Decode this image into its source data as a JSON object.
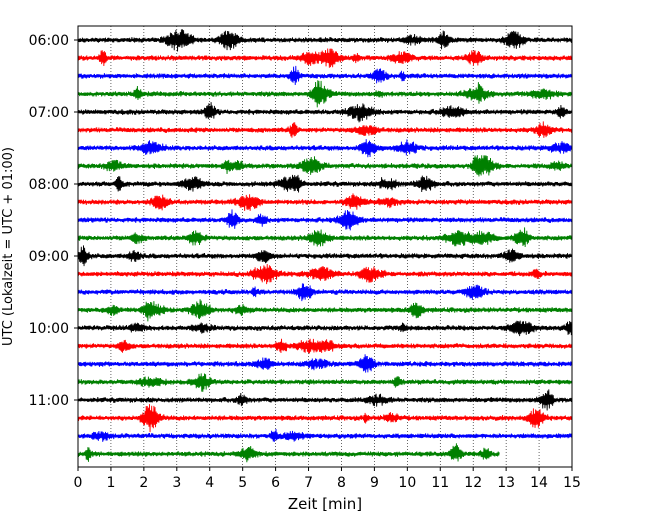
{
  "chart_data": {
    "type": "line",
    "title": "",
    "xlabel": "Zeit  [min]",
    "ylabel": "UTC (Lokalzeit = UTC + 01:00)",
    "xlim": [
      0,
      15
    ],
    "x_ticks": [
      "0",
      "1",
      "2",
      "3",
      "4",
      "5",
      "6",
      "7",
      "8",
      "9",
      "10",
      "11",
      "12",
      "13",
      "14",
      "15"
    ],
    "y_tick_labels": [
      "06:00",
      "07:00",
      "08:00",
      "09:00",
      "10:00",
      "11:00"
    ],
    "grid": "vertical dotted at each minute",
    "start_time": "06:00",
    "minutes_per_line": 15,
    "colors": [
      "#000000",
      "#ff0000",
      "#0000ff",
      "#008000"
    ],
    "traces": [
      {
        "start": "06:00",
        "color": "#000000",
        "length_min": 15
      },
      {
        "start": "06:15",
        "color": "#ff0000",
        "length_min": 15
      },
      {
        "start": "06:30",
        "color": "#0000ff",
        "length_min": 15
      },
      {
        "start": "06:45",
        "color": "#008000",
        "length_min": 15
      },
      {
        "start": "07:00",
        "color": "#000000",
        "length_min": 15
      },
      {
        "start": "07:15",
        "color": "#ff0000",
        "length_min": 15
      },
      {
        "start": "07:30",
        "color": "#0000ff",
        "length_min": 15
      },
      {
        "start": "07:45",
        "color": "#008000",
        "length_min": 15
      },
      {
        "start": "08:00",
        "color": "#000000",
        "length_min": 15
      },
      {
        "start": "08:15",
        "color": "#ff0000",
        "length_min": 15
      },
      {
        "start": "08:30",
        "color": "#0000ff",
        "length_min": 15
      },
      {
        "start": "08:45",
        "color": "#008000",
        "length_min": 15
      },
      {
        "start": "09:00",
        "color": "#000000",
        "length_min": 15
      },
      {
        "start": "09:15",
        "color": "#ff0000",
        "length_min": 15
      },
      {
        "start": "09:30",
        "color": "#0000ff",
        "length_min": 15
      },
      {
        "start": "09:45",
        "color": "#008000",
        "length_min": 15
      },
      {
        "start": "10:00",
        "color": "#000000",
        "length_min": 15
      },
      {
        "start": "10:15",
        "color": "#ff0000",
        "length_min": 15
      },
      {
        "start": "10:30",
        "color": "#0000ff",
        "length_min": 15
      },
      {
        "start": "10:45",
        "color": "#008000",
        "length_min": 15
      },
      {
        "start": "11:00",
        "color": "#000000",
        "length_min": 15
      },
      {
        "start": "11:15",
        "color": "#ff0000",
        "length_min": 15
      },
      {
        "start": "11:30",
        "color": "#0000ff",
        "length_min": 15
      },
      {
        "start": "11:45",
        "color": "#008000",
        "length_min": 12.8
      }
    ]
  }
}
